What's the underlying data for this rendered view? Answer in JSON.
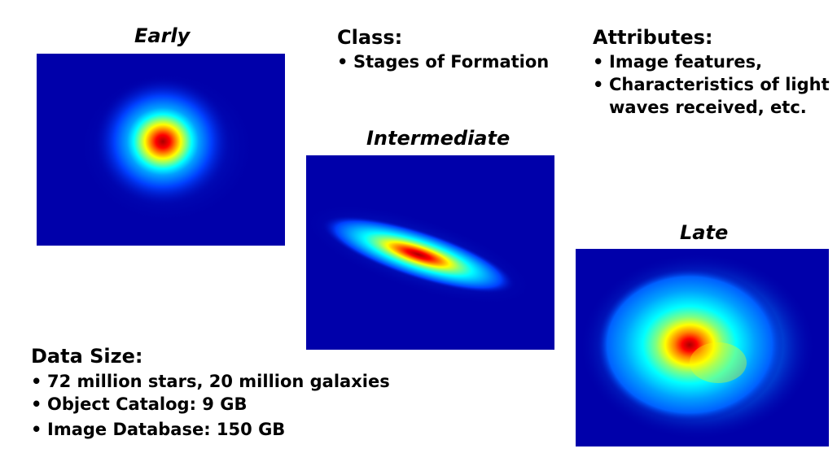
{
  "early": {
    "label": "Early"
  },
  "intermediate": {
    "label": "Intermediate"
  },
  "late": {
    "label": "Late"
  },
  "class_block": {
    "heading": "Class:",
    "items": [
      "Stages of Formation"
    ]
  },
  "attributes_block": {
    "heading": "Attributes:",
    "items": [
      "Image features,",
      "Characteristics of light",
      "waves received, etc."
    ]
  },
  "data_size_block": {
    "heading": "Data Size:",
    "items": [
      "72 million stars, 20 million galaxies",
      "Object Catalog: 9 GB",
      "Image Database: 150 GB"
    ]
  },
  "colors": {
    "background": "#0000aa",
    "heat_scale": [
      "#0000aa",
      "#0040ff",
      "#00a0ff",
      "#00ffff",
      "#80ff80",
      "#ffff00",
      "#ff8000",
      "#ff0000",
      "#aa0000"
    ]
  }
}
